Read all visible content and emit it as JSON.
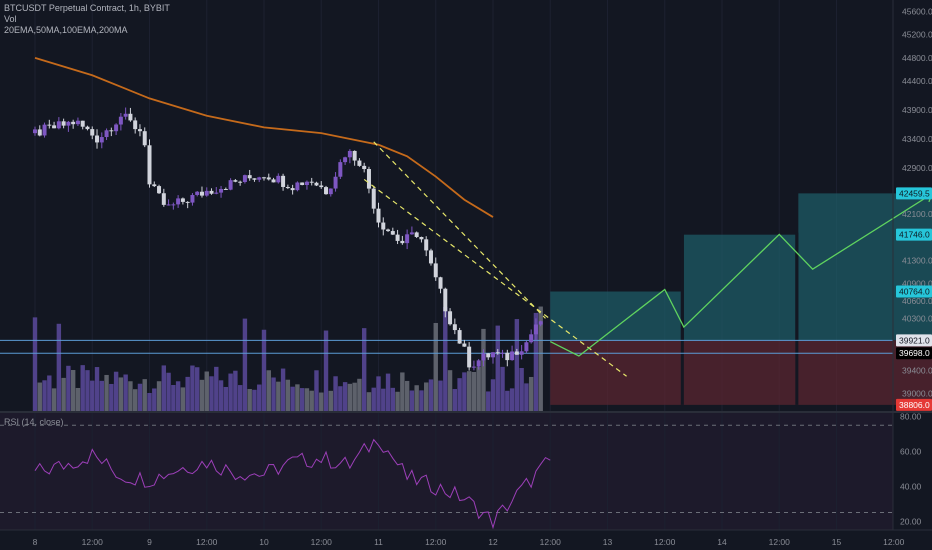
{
  "header": {
    "title": "BTCUSDT Perpetual Contract, 1h, BYBIT",
    "volume_label": "Vol",
    "indicators": "20EMA,50MA,100EMA,200MA",
    "rsi_label": "RSI (14, close)"
  },
  "colors": {
    "background": "#131722",
    "rsi_pane": "#1d1a2b",
    "candle_up": "#7e57c2",
    "candle_down": "#d1d4dc",
    "ema_line": "#c56a1b",
    "level_line": "#5b9bd5",
    "channel": "#e7e76a",
    "projection": "#5fd35f",
    "target_zone": "#1e5b66",
    "stop_zone": "#5a2530",
    "rsi_line": "#9c3fb8",
    "axis_text": "#8a8d96"
  },
  "chart_data": [
    {
      "type": "candlestick",
      "symbol": "BTCUSDT Perpetual Contract",
      "interval": "1h",
      "exchange": "BYBIT",
      "x_tick_labels": [
        "8",
        "12:00",
        "9",
        "12:00",
        "10",
        "12:00",
        "11",
        "12:00",
        "12",
        "12:00",
        "13",
        "12:00",
        "14",
        "12:00",
        "15",
        "12:00"
      ],
      "y_tick_labels": [
        "45600.0",
        "45200.0",
        "44800.0",
        "44400.0",
        "43900.0",
        "43400.0",
        "42900.0",
        "42100.0",
        "41300.0",
        "40900.0",
        "40600.0",
        "40300.0",
        "39400.0",
        "39000.0"
      ],
      "y_range": [
        38700,
        45800
      ],
      "price_badges": [
        {
          "label": "42459.5",
          "kind": "cyan",
          "value": 42459.5
        },
        {
          "label": "41746.0",
          "kind": "cyan",
          "value": 41746.0
        },
        {
          "label": "40764.0",
          "kind": "cyan",
          "value": 40764.0
        },
        {
          "label": "39921.0",
          "kind": "white",
          "value": 39921.0
        },
        {
          "label": "39698.0",
          "kind": "black",
          "value": 39698.0
        },
        {
          "label": "38806.0",
          "kind": "red",
          "value": 38806.0
        }
      ],
      "horizontal_levels": [
        39921.0,
        39698.0
      ],
      "ema_200": {
        "x": [
          "8 00:00",
          "8 12:00",
          "9 00:00",
          "9 12:00",
          "10 00:00",
          "10 12:00",
          "11 00:00",
          "11 06:00",
          "11 12:00",
          "11 18:00",
          "12 00:00"
        ],
        "y": [
          44800,
          44500,
          44100,
          43800,
          43600,
          43500,
          43300,
          43100,
          42750,
          42350,
          42050
        ]
      },
      "channel": {
        "upper": {
          "from": [
            "10 23:00",
            43350
          ],
          "to": [
            "12 11:00",
            40300
          ]
        },
        "lower": {
          "from": [
            "10 21:00",
            42700
          ],
          "to": [
            "13 04:00",
            39300
          ]
        }
      },
      "projection_path": {
        "x": [
          "12 12:00",
          "12 18:00",
          "13 12:00",
          "13 16:00",
          "14 12:00",
          "14 19:00",
          "15 20:00"
        ],
        "y": [
          39900,
          39650,
          40800,
          40150,
          41750,
          41150,
          42450
        ]
      },
      "zones": {
        "target_boxes": [
          {
            "x0": "12 12:00",
            "x1": "13 16:00",
            "top": 40764.0,
            "bottom": 39921.0
          },
          {
            "x0": "13 16:00",
            "x1": "14 16:00",
            "top": 41746.0,
            "bottom": 39921.0
          },
          {
            "x0": "14 16:00",
            "x1": "15 22:00",
            "top": 42459.5,
            "bottom": 39921.0
          }
        ],
        "stop_box": {
          "x0": "12 12:00",
          "x1": "15 22:00",
          "top": 39921.0,
          "bottom": 38806.0
        }
      }
    },
    {
      "type": "line",
      "name": "RSI (14, close)",
      "y_tick_labels": [
        "80.00",
        "60.00",
        "40.00",
        "20.00"
      ],
      "ylim": [
        15,
        82
      ],
      "guide_levels": [
        75,
        25
      ],
      "x": [
        "8 00:00",
        "8 06:00",
        "8 12:00",
        "8 18:00",
        "9 00:00",
        "9 06:00",
        "9 12:00",
        "9 18:00",
        "10 00:00",
        "10 06:00",
        "10 12:00",
        "10 18:00",
        "11 00:00",
        "11 06:00",
        "11 12:00",
        "11 18:00",
        "12 00:00",
        "12 06:00",
        "12 12:00"
      ],
      "y": [
        48,
        52,
        58,
        46,
        44,
        50,
        54,
        48,
        47,
        54,
        56,
        52,
        68,
        45,
        40,
        33,
        20,
        38,
        55
      ]
    }
  ]
}
